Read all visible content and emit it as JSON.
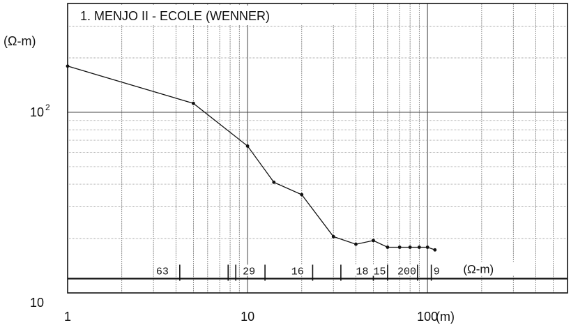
{
  "chart_data": {
    "type": "line",
    "title": "1. MENJO II - ECOLE (WENNER)",
    "xscale": "log",
    "yscale": "log",
    "xlim": [
      1,
      600
    ],
    "ylim": [
      10,
      400
    ],
    "ylabel": "(Ω-m)",
    "xunit": "(m)",
    "x_ticks": [
      {
        "value": 1,
        "label": "1"
      },
      {
        "value": 10,
        "label": "10"
      },
      {
        "value": 100,
        "label": "100"
      }
    ],
    "y_ticks": [
      {
        "value": 10,
        "label": "10"
      },
      {
        "value": 100,
        "label": "10",
        "sup": "2"
      }
    ],
    "grid": true,
    "series": [
      {
        "x": [
          1,
          5,
          10,
          14,
          20,
          30,
          40,
          50,
          60,
          70,
          80,
          90,
          100,
          110
        ],
        "y": [
          180,
          112,
          65,
          41,
          35,
          20.5,
          18.6,
          19.5,
          17.9,
          17.9,
          17.9,
          17.9,
          17.9,
          17.3
        ]
      }
    ],
    "layer_model": {
      "resistivities": [
        "63",
        "29",
        "16",
        "18",
        "15",
        "200",
        "9"
      ],
      "boundaries_m": [
        4.2,
        7.8,
        8.6,
        12.5,
        23,
        33,
        50,
        60,
        88,
        105
      ],
      "label_positions_m": [
        3.1,
        9.4,
        17.5,
        40,
        50,
        68,
        108
      ],
      "unit_label": "(Ω-m)",
      "level": 12
    }
  }
}
